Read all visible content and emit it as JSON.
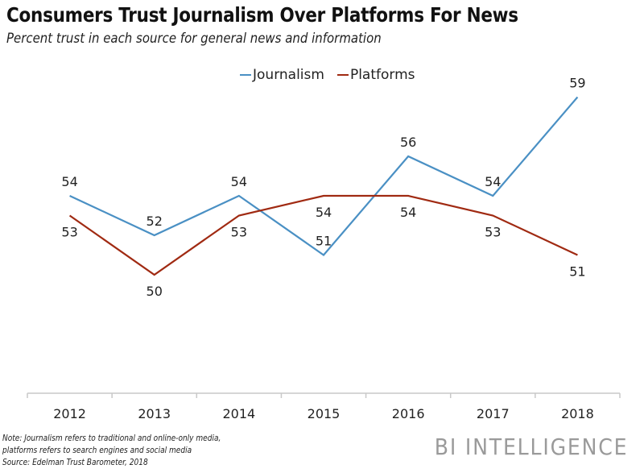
{
  "chart_data": {
    "type": "line",
    "title": "Consumers Trust Journalism Over Platforms For News",
    "subtitle": "Percent trust in each source for general news and information",
    "xlabel": "",
    "ylabel": "",
    "categories": [
      "2012",
      "2013",
      "2014",
      "2015",
      "2016",
      "2017",
      "2018"
    ],
    "series": [
      {
        "name": "Journalism",
        "color": "#4a90c4",
        "values": [
          54,
          52,
          54,
          51,
          56,
          54,
          59
        ],
        "label_position": [
          "above",
          "above",
          "above",
          "above",
          "above",
          "above",
          "above"
        ]
      },
      {
        "name": "Platforms",
        "color": "#a02a12",
        "values": [
          53,
          50,
          53,
          54,
          54,
          53,
          51
        ],
        "label_position": [
          "below",
          "below",
          "below",
          "below",
          "below",
          "below",
          "below"
        ]
      }
    ],
    "ylim": [
      44,
      61
    ],
    "grid": false,
    "yaxis_visible": false,
    "legend": "top-center"
  },
  "footer": {
    "note_lines": [
      "Note: Journalism refers to traditional and online-only media,",
      "platforms refers to search engines and social media",
      "Source: Edelman Trust Barometer, 2018"
    ],
    "brand": "BI INTELLIGENCE"
  }
}
